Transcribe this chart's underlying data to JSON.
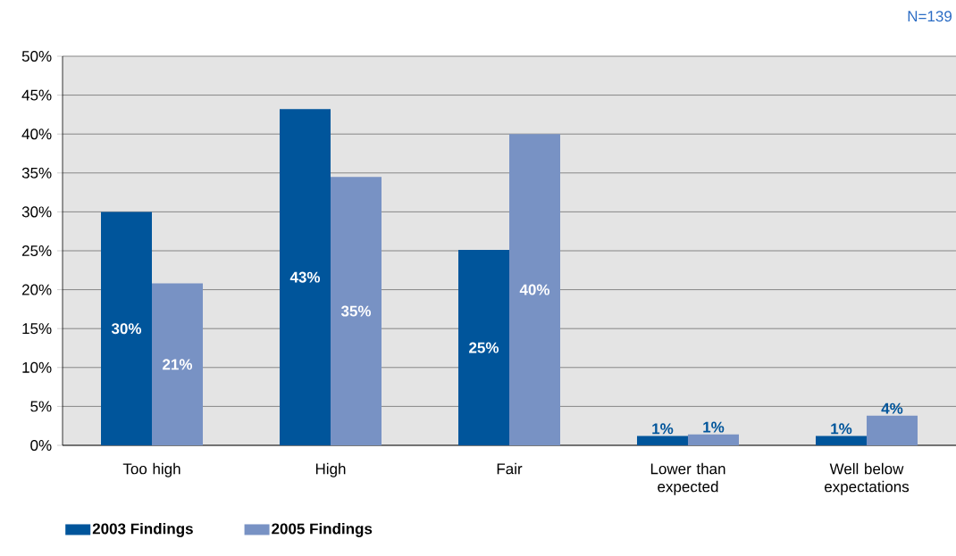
{
  "chart_data": {
    "type": "bar",
    "categories": [
      "Too high",
      "High",
      "Fair",
      "Lower than expected",
      "Well below expectations"
    ],
    "series": [
      {
        "name": "2003 Findings",
        "color": "#00559b",
        "values": [
          30,
          43.2,
          25.1,
          1.2,
          1.2
        ],
        "value_labels": [
          "30%",
          "43%",
          "25%",
          "1%",
          "1%"
        ]
      },
      {
        "name": "2005 Findings",
        "color": "#7892c4",
        "values": [
          20.8,
          34.5,
          40,
          1.4,
          3.8
        ],
        "value_labels": [
          "21%",
          "35%",
          "40%",
          "1%",
          "4%"
        ]
      }
    ],
    "ylim": [
      0,
      50
    ],
    "yticks": [
      {
        "value": 0,
        "label": "0%"
      },
      {
        "value": 5,
        "label": "5%"
      },
      {
        "value": 10,
        "label": "10%"
      },
      {
        "value": 15,
        "label": "15%"
      },
      {
        "value": 20,
        "label": "20%"
      },
      {
        "value": 25,
        "label": "25%"
      },
      {
        "value": 30,
        "label": "30%"
      },
      {
        "value": 35,
        "label": "35%"
      },
      {
        "value": 40,
        "label": "40%"
      },
      {
        "value": 45,
        "label": "45%"
      },
      {
        "value": 50,
        "label": "50%"
      }
    ],
    "grid": "y",
    "legend": "bottom",
    "annotations": [
      "N=139"
    ]
  }
}
